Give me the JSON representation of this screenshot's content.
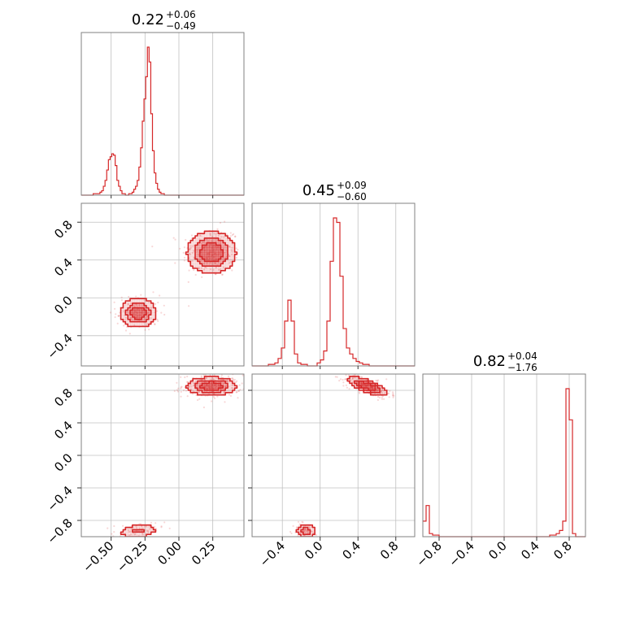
{
  "chart_data": {
    "type": "corner",
    "color": "#d62728",
    "params": [
      {
        "name": "p0",
        "range": [
          -0.72,
          0.48
        ],
        "ticks": [
          -0.5,
          -0.25,
          0.0,
          0.25
        ],
        "tick_labels": [
          "−0.50",
          "−0.25",
          "0.00",
          "0.25"
        ]
      },
      {
        "name": "p1",
        "range": [
          -0.72,
          1.0
        ],
        "ticks": [
          -0.4,
          0.0,
          0.4,
          0.8
        ],
        "tick_labels": [
          "−0.4",
          "0.0",
          "0.4",
          "0.8"
        ]
      },
      {
        "name": "p2",
        "range": [
          -1.0,
          1.0
        ],
        "ticks": [
          -0.8,
          -0.4,
          0.0,
          0.4,
          0.8
        ],
        "tick_labels": [
          "−0.8",
          "−0.4",
          "0.0",
          "0.4",
          "0.8"
        ]
      }
    ],
    "titles": [
      {
        "median": "0.22",
        "plus": "+0.06",
        "minus": "−0.49"
      },
      {
        "median": "0.45",
        "plus": "+0.09",
        "minus": "−0.60"
      },
      {
        "median": "0.82",
        "plus": "+0.04",
        "minus": "−1.76"
      }
    ],
    "histograms": [
      {
        "param": 0,
        "bin_start": -0.72,
        "bin_width": 0.0125,
        "counts": [
          0,
          0,
          0,
          0,
          0,
          0,
          0,
          1,
          1,
          1,
          1,
          2,
          3,
          6,
          10,
          17,
          24,
          26,
          28,
          27,
          20,
          10,
          6,
          3,
          1,
          1,
          0,
          0,
          1,
          1,
          2,
          4,
          6,
          10,
          19,
          32,
          50,
          65,
          80,
          100,
          90,
          55,
          30,
          15,
          8,
          4,
          2,
          1,
          1,
          0,
          0,
          0,
          0,
          0,
          0,
          0,
          0,
          0,
          0,
          0,
          0,
          0,
          0,
          0,
          0,
          0,
          0,
          0,
          0,
          0,
          0,
          0,
          0,
          0,
          0,
          0,
          0,
          0,
          0,
          0,
          0,
          0,
          0,
          0,
          0,
          0,
          0,
          0,
          0,
          0,
          0,
          0,
          0,
          0,
          0,
          0
        ]
      },
      {
        "param": 1,
        "bin_start": -0.72,
        "bin_width": 0.0344,
        "counts": [
          0,
          0,
          0,
          0,
          0,
          1,
          1,
          2,
          5,
          12,
          30,
          44,
          30,
          8,
          2,
          1,
          1,
          0,
          0,
          0,
          2,
          4,
          10,
          30,
          70,
          99,
          96,
          60,
          25,
          12,
          8,
          5,
          3,
          2,
          1,
          1,
          0,
          0,
          0,
          0,
          0,
          0,
          0,
          0,
          0,
          0,
          0,
          0,
          0,
          0
        ]
      },
      {
        "param": 2,
        "bin_start": -1.0,
        "bin_width": 0.04,
        "counts": [
          10,
          20,
          2,
          1,
          1,
          0,
          0,
          0,
          0,
          0,
          0,
          0,
          0,
          0,
          0,
          0,
          0,
          0,
          0,
          0,
          0,
          0,
          0,
          0,
          0,
          0,
          0,
          0,
          0,
          0,
          0,
          0,
          0,
          0,
          0,
          0,
          0,
          0,
          0,
          1,
          1,
          2,
          4,
          10,
          95,
          75,
          2,
          0,
          0,
          0
        ]
      }
    ],
    "density_2d": [
      {
        "x_param": 0,
        "y_param": 1,
        "modes": [
          {
            "x": 0.24,
            "y": 0.48,
            "sx": 0.08,
            "sy": 0.1,
            "rho": 0.0,
            "weight": 0.68
          },
          {
            "x": -0.3,
            "y": -0.16,
            "sx": 0.06,
            "sy": 0.07,
            "rho": 0.0,
            "weight": 0.32
          }
        ]
      },
      {
        "x_param": 0,
        "y_param": 2,
        "modes": [
          {
            "x": 0.24,
            "y": 0.85,
            "sx": 0.08,
            "sy": 0.05,
            "rho": 0.0,
            "weight": 0.8
          },
          {
            "x": -0.3,
            "y": -0.93,
            "sx": 0.07,
            "sy": 0.04,
            "rho": 0.2,
            "weight": 0.2
          }
        ]
      },
      {
        "x_param": 1,
        "y_param": 2,
        "modes": [
          {
            "x": 0.5,
            "y": 0.85,
            "sx": 0.09,
            "sy": 0.05,
            "rho": -0.7,
            "weight": 0.78
          },
          {
            "x": -0.15,
            "y": -0.93,
            "sx": 0.05,
            "sy": 0.04,
            "rho": 0.0,
            "weight": 0.22
          }
        ]
      }
    ]
  }
}
